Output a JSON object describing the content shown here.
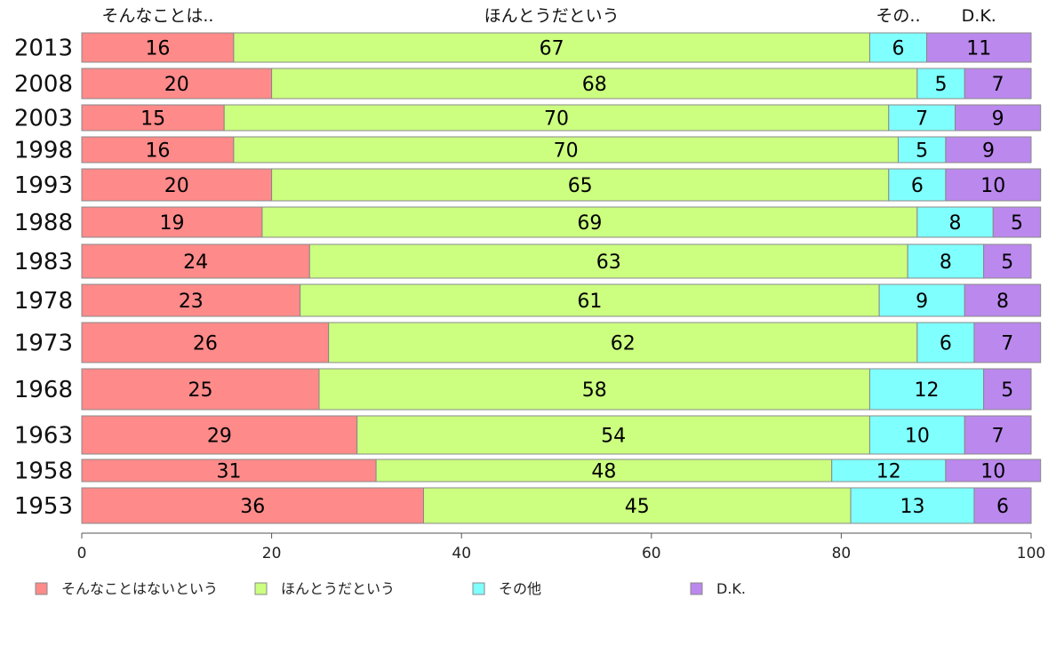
{
  "chart_data": {
    "type": "bar",
    "orientation": "horizontal",
    "stacked": true,
    "categories": [
      "2013",
      "2008",
      "2003",
      "1998",
      "1993",
      "1988",
      "1983",
      "1978",
      "1973",
      "1968",
      "1963",
      "1958",
      "1953"
    ],
    "series": [
      {
        "name": "そんなことはないという",
        "short_name": "そんなことは..",
        "color": "#ff8a8a",
        "values": [
          16,
          20,
          15,
          16,
          20,
          19,
          24,
          23,
          26,
          25,
          29,
          31,
          36
        ]
      },
      {
        "name": "ほんとうだという",
        "short_name": "ほんとうだという",
        "color": "#ccff80",
        "values": [
          67,
          68,
          70,
          70,
          65,
          69,
          63,
          61,
          62,
          58,
          54,
          48,
          45
        ]
      },
      {
        "name": "その他",
        "short_name": "その..",
        "color": "#80ffff",
        "values": [
          6,
          5,
          7,
          5,
          6,
          8,
          8,
          9,
          6,
          12,
          10,
          12,
          13
        ]
      },
      {
        "name": "D.K.",
        "short_name": "D.K.",
        "color": "#bb88ee",
        "values": [
          11,
          7,
          9,
          9,
          10,
          5,
          5,
          8,
          7,
          5,
          7,
          10,
          6
        ]
      }
    ],
    "xlim": [
      0,
      100
    ],
    "xticks": [
      0,
      20,
      40,
      60,
      80,
      100
    ],
    "title": "",
    "xlabel": "",
    "ylabel": "",
    "grid": false,
    "legend_position": "bottom"
  }
}
